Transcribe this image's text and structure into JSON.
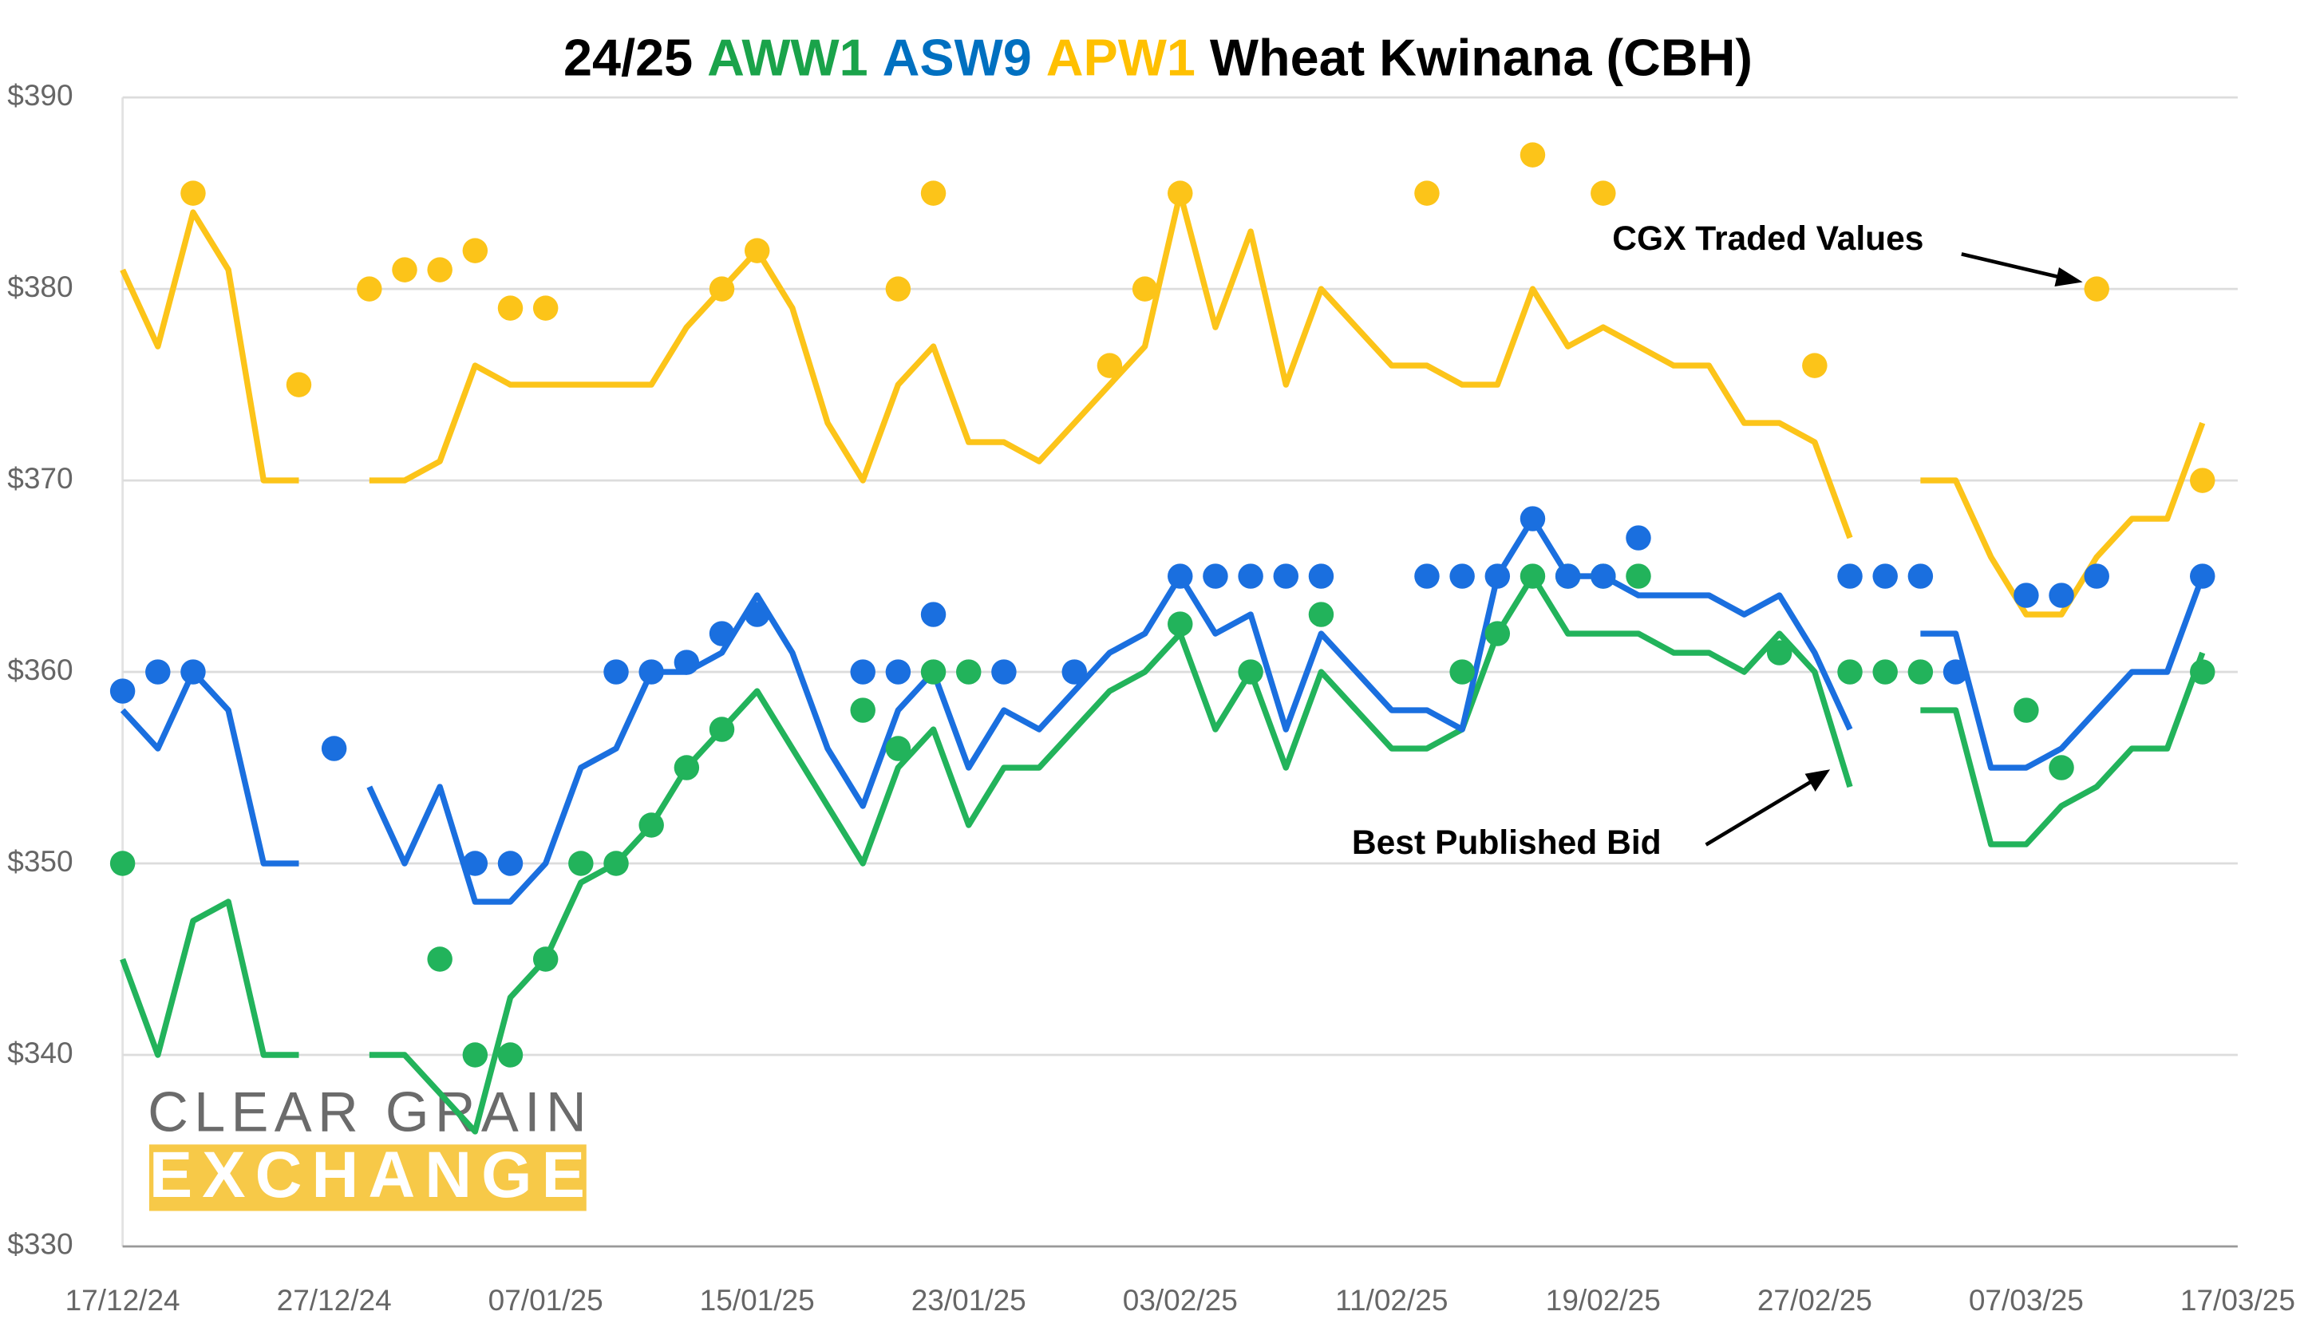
{
  "chart_data": {
    "type": "line",
    "title": {
      "prefix": "24/25",
      "suffix": "Wheat Kwinana (CBH)"
    },
    "categories": [
      "17/12/24",
      null,
      null,
      null,
      null,
      null,
      "27/12/24",
      null,
      null,
      null,
      null,
      null,
      "07/01/25",
      null,
      null,
      null,
      null,
      null,
      "15/01/25",
      null,
      null,
      null,
      null,
      null,
      "23/01/25",
      null,
      null,
      null,
      null,
      null,
      "03/02/25",
      null,
      null,
      null,
      null,
      null,
      "11/02/25",
      null,
      null,
      null,
      null,
      null,
      "19/02/25",
      null,
      null,
      null,
      null,
      null,
      "27/02/25",
      null,
      null,
      null,
      null,
      null,
      "07/03/25",
      null,
      null,
      null,
      null,
      null,
      "17/03/25"
    ],
    "series": [
      {
        "name": "AWW1",
        "color": "#22b35b",
        "values": [
          345,
          340,
          347,
          348,
          340,
          340,
          null,
          340,
          340,
          338,
          336,
          343,
          345,
          349,
          350,
          352,
          355,
          357,
          359,
          356,
          353,
          350,
          355,
          357,
          352,
          355,
          355,
          357,
          359,
          360,
          362,
          357,
          360,
          355,
          360,
          358,
          356,
          356,
          357,
          362,
          365,
          362,
          362,
          362,
          361,
          361,
          360,
          362,
          360,
          354,
          null,
          358,
          358,
          351,
          351,
          353,
          354,
          356,
          356,
          361,
          null
        ],
        "traded": [
          350,
          null,
          null,
          null,
          null,
          null,
          null,
          null,
          null,
          345,
          340,
          340,
          345,
          350,
          350,
          352,
          355,
          357,
          null,
          null,
          null,
          358,
          356,
          360,
          360,
          null,
          null,
          null,
          null,
          null,
          362.5,
          null,
          360,
          null,
          363,
          null,
          null,
          null,
          360,
          362,
          365,
          365,
          365,
          365,
          null,
          null,
          null,
          361,
          null,
          360,
          360,
          360,
          null,
          null,
          358,
          355,
          null,
          null,
          null,
          360,
          null
        ]
      },
      {
        "name": "ASW9",
        "color": "#1a6fdf",
        "values": [
          358,
          356,
          360,
          358,
          350,
          350,
          null,
          354,
          350,
          354,
          348,
          348,
          350,
          355,
          356,
          360,
          360,
          361,
          364,
          361,
          356,
          353,
          358,
          360,
          355,
          358,
          357,
          359,
          361,
          362,
          365,
          362,
          363,
          357,
          362,
          360,
          358,
          358,
          357,
          365,
          368,
          365,
          365,
          364,
          364,
          364,
          363,
          364,
          361,
          357,
          null,
          362,
          362,
          355,
          355,
          356,
          358,
          360,
          360,
          365,
          null
        ],
        "traded": [
          359,
          360,
          360,
          null,
          null,
          null,
          356,
          null,
          null,
          null,
          350,
          350,
          null,
          null,
          360,
          360,
          360.5,
          362,
          363,
          null,
          null,
          360,
          360,
          363,
          null,
          360,
          null,
          360,
          null,
          null,
          365,
          365,
          365,
          365,
          365,
          null,
          null,
          365,
          365,
          365,
          368,
          365,
          365,
          367,
          null,
          null,
          null,
          null,
          null,
          365,
          365,
          365,
          360,
          null,
          364,
          364,
          365,
          null,
          null,
          365,
          null
        ]
      },
      {
        "name": "APW1",
        "color": "#fcc419",
        "values": [
          381,
          377,
          384,
          381,
          370,
          370,
          null,
          370,
          370,
          371,
          376,
          375,
          375,
          375,
          375,
          375,
          378,
          380,
          382,
          379,
          373,
          370,
          375,
          377,
          372,
          372,
          371,
          373,
          375,
          377,
          385,
          378,
          383,
          375,
          380,
          378,
          376,
          376,
          375,
          375,
          380,
          377,
          378,
          377,
          376,
          376,
          373,
          373,
          372,
          367,
          null,
          370,
          370,
          366,
          363,
          363,
          366,
          368,
          368,
          373,
          null
        ],
        "traded": [
          null,
          null,
          385,
          null,
          null,
          375,
          null,
          380,
          381,
          381,
          382,
          379,
          379,
          null,
          null,
          null,
          null,
          380,
          382,
          null,
          null,
          null,
          380,
          385,
          null,
          null,
          null,
          null,
          376,
          380,
          385,
          null,
          null,
          null,
          null,
          null,
          null,
          385,
          null,
          null,
          387,
          null,
          385,
          null,
          null,
          null,
          null,
          null,
          376,
          null,
          null,
          null,
          null,
          null,
          null,
          null,
          380,
          null,
          null,
          370,
          null
        ]
      }
    ],
    "title_colors": {
      "prefix": "#000000",
      "suffix": "#000000"
    },
    "ylim": [
      330,
      390
    ],
    "yticks": [
      {
        "value": 330,
        "label": "$330"
      },
      {
        "value": 340,
        "label": "$340"
      },
      {
        "value": 350,
        "label": "$350"
      },
      {
        "value": 360,
        "label": "$360"
      },
      {
        "value": 370,
        "label": "$370"
      },
      {
        "value": 380,
        "label": "$380"
      },
      {
        "value": 390,
        "label": "$390"
      }
    ],
    "grid": true,
    "annotations": [
      "CGX Traded Values",
      "Best Published Bid"
    ],
    "logo": {
      "top": "CLEAR GRAIN",
      "bottom": "EXCHANGE"
    }
  }
}
